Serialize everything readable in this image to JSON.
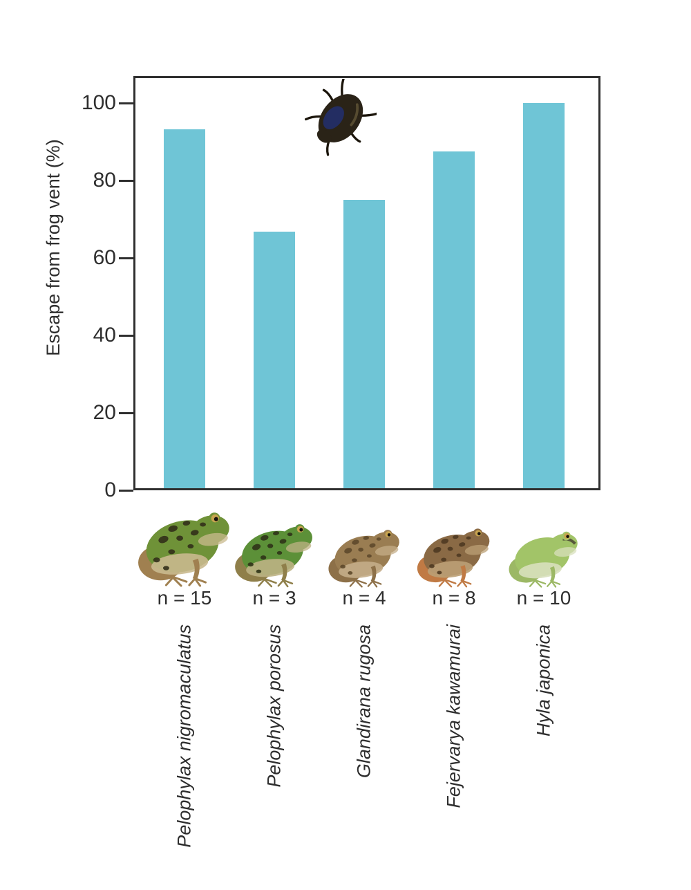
{
  "figure": {
    "background": "#ffffff",
    "axis_color": "#2f2f2f",
    "text_color": "#2e2e2e"
  },
  "chart_data": {
    "type": "bar",
    "title": "",
    "xlabel": "",
    "ylabel": "Escape from frog vent (%)",
    "ylim": [
      0,
      107
    ],
    "yticks": [
      0,
      20,
      40,
      60,
      80,
      100
    ],
    "grid": false,
    "legend_position": "none",
    "bar_color": "#6fc5d6",
    "categories": [
      "Pelophylax nigromaculatus",
      "Pelophylax porosus",
      "Glandirana rugosa",
      "Fejervarya kawamurai",
      "Hyla japonica"
    ],
    "values": [
      93.3,
      66.7,
      75,
      87.5,
      100
    ],
    "sample_sizes": [
      "n = 15",
      "n = 3",
      "n = 4",
      "n = 8",
      "n = 10"
    ]
  },
  "illustrations": {
    "beetle": {
      "name": "diving-beetle",
      "body_color": "#2a2317",
      "sheen_color": "#223075",
      "leg_color": "#1a140a",
      "highlight_color": "#7a6d46"
    },
    "frogs": [
      {
        "species": "Pelophylax nigromaculatus",
        "body_color": "#6f9238",
        "spot_color": "#33301a",
        "belly_color": "#c9b98e",
        "leg_color": "#a08050",
        "spotted": true,
        "eye_stripe": false
      },
      {
        "species": "Pelophylax porosus",
        "body_color": "#5c9038",
        "spot_color": "#2f3318",
        "belly_color": "#bdb284",
        "leg_color": "#8f7f4a",
        "spotted": true,
        "eye_stripe": false
      },
      {
        "species": "Glandirana rugosa",
        "body_color": "#9a7d52",
        "spot_color": "#5f4a2c",
        "belly_color": "#c4ad88",
        "leg_color": "#8d7048",
        "spotted": true,
        "eye_stripe": false
      },
      {
        "species": "Fejervarya kawamurai",
        "body_color": "#8a6a45",
        "spot_color": "#4f3a22",
        "belly_color": "#bba076",
        "leg_color": "#c07a44",
        "spotted": true,
        "eye_stripe": false
      },
      {
        "species": "Hyla japonica",
        "body_color": "#a2c468",
        "spot_color": "#7f9e4e",
        "belly_color": "#d8e0bc",
        "leg_color": "#9cb865",
        "spotted": false,
        "eye_stripe": true
      }
    ]
  }
}
